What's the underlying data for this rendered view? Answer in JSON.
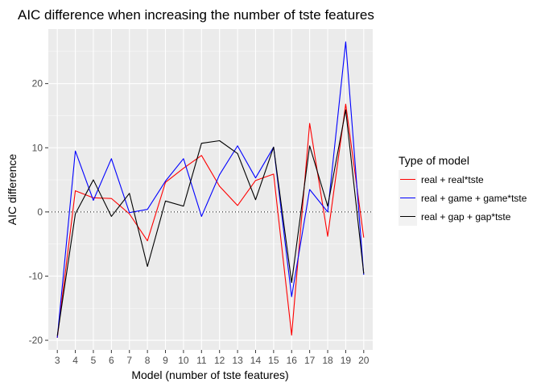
{
  "chart_data": {
    "type": "line",
    "title": "AIC difference when increasing the number of tste features",
    "xlabel": "Model (number of tste features)",
    "ylabel": "AIC difference",
    "x": [
      3,
      4,
      5,
      6,
      7,
      8,
      9,
      10,
      11,
      12,
      13,
      14,
      15,
      16,
      17,
      18,
      19,
      20
    ],
    "xlim": [
      2.5,
      20.5
    ],
    "ylim": [
      -21.5,
      28.5
    ],
    "yticks": [
      -20,
      -10,
      0,
      10,
      20
    ],
    "reference_line": {
      "y": 0,
      "style": "dotted"
    },
    "legend": {
      "title": "Type of model",
      "position": "right"
    },
    "grid": true,
    "series": [
      {
        "name": "real + real*tste",
        "color": "#ff0000",
        "values": [
          -19.6,
          3.3,
          2.2,
          2.1,
          -0.3,
          -4.5,
          4.6,
          6.8,
          8.8,
          4.0,
          1.0,
          4.9,
          5.9,
          -19.2,
          13.8,
          -3.8,
          16.8,
          -4.0
        ]
      },
      {
        "name": "real + game + game*tste",
        "color": "#0000ff",
        "values": [
          -19.6,
          9.5,
          1.8,
          8.3,
          -0.1,
          0.4,
          4.8,
          8.3,
          -0.7,
          5.8,
          10.3,
          5.3,
          10.1,
          -13.2,
          3.5,
          0.0,
          26.5,
          -9.8
        ]
      },
      {
        "name": "real + gap + gap*tste",
        "color": "#000000",
        "values": [
          -19.3,
          -0.3,
          5.0,
          -0.7,
          2.9,
          -8.5,
          1.7,
          0.9,
          10.7,
          11.1,
          9.1,
          1.9,
          10.1,
          -11.0,
          10.3,
          0.9,
          15.9,
          -9.6
        ]
      }
    ]
  }
}
